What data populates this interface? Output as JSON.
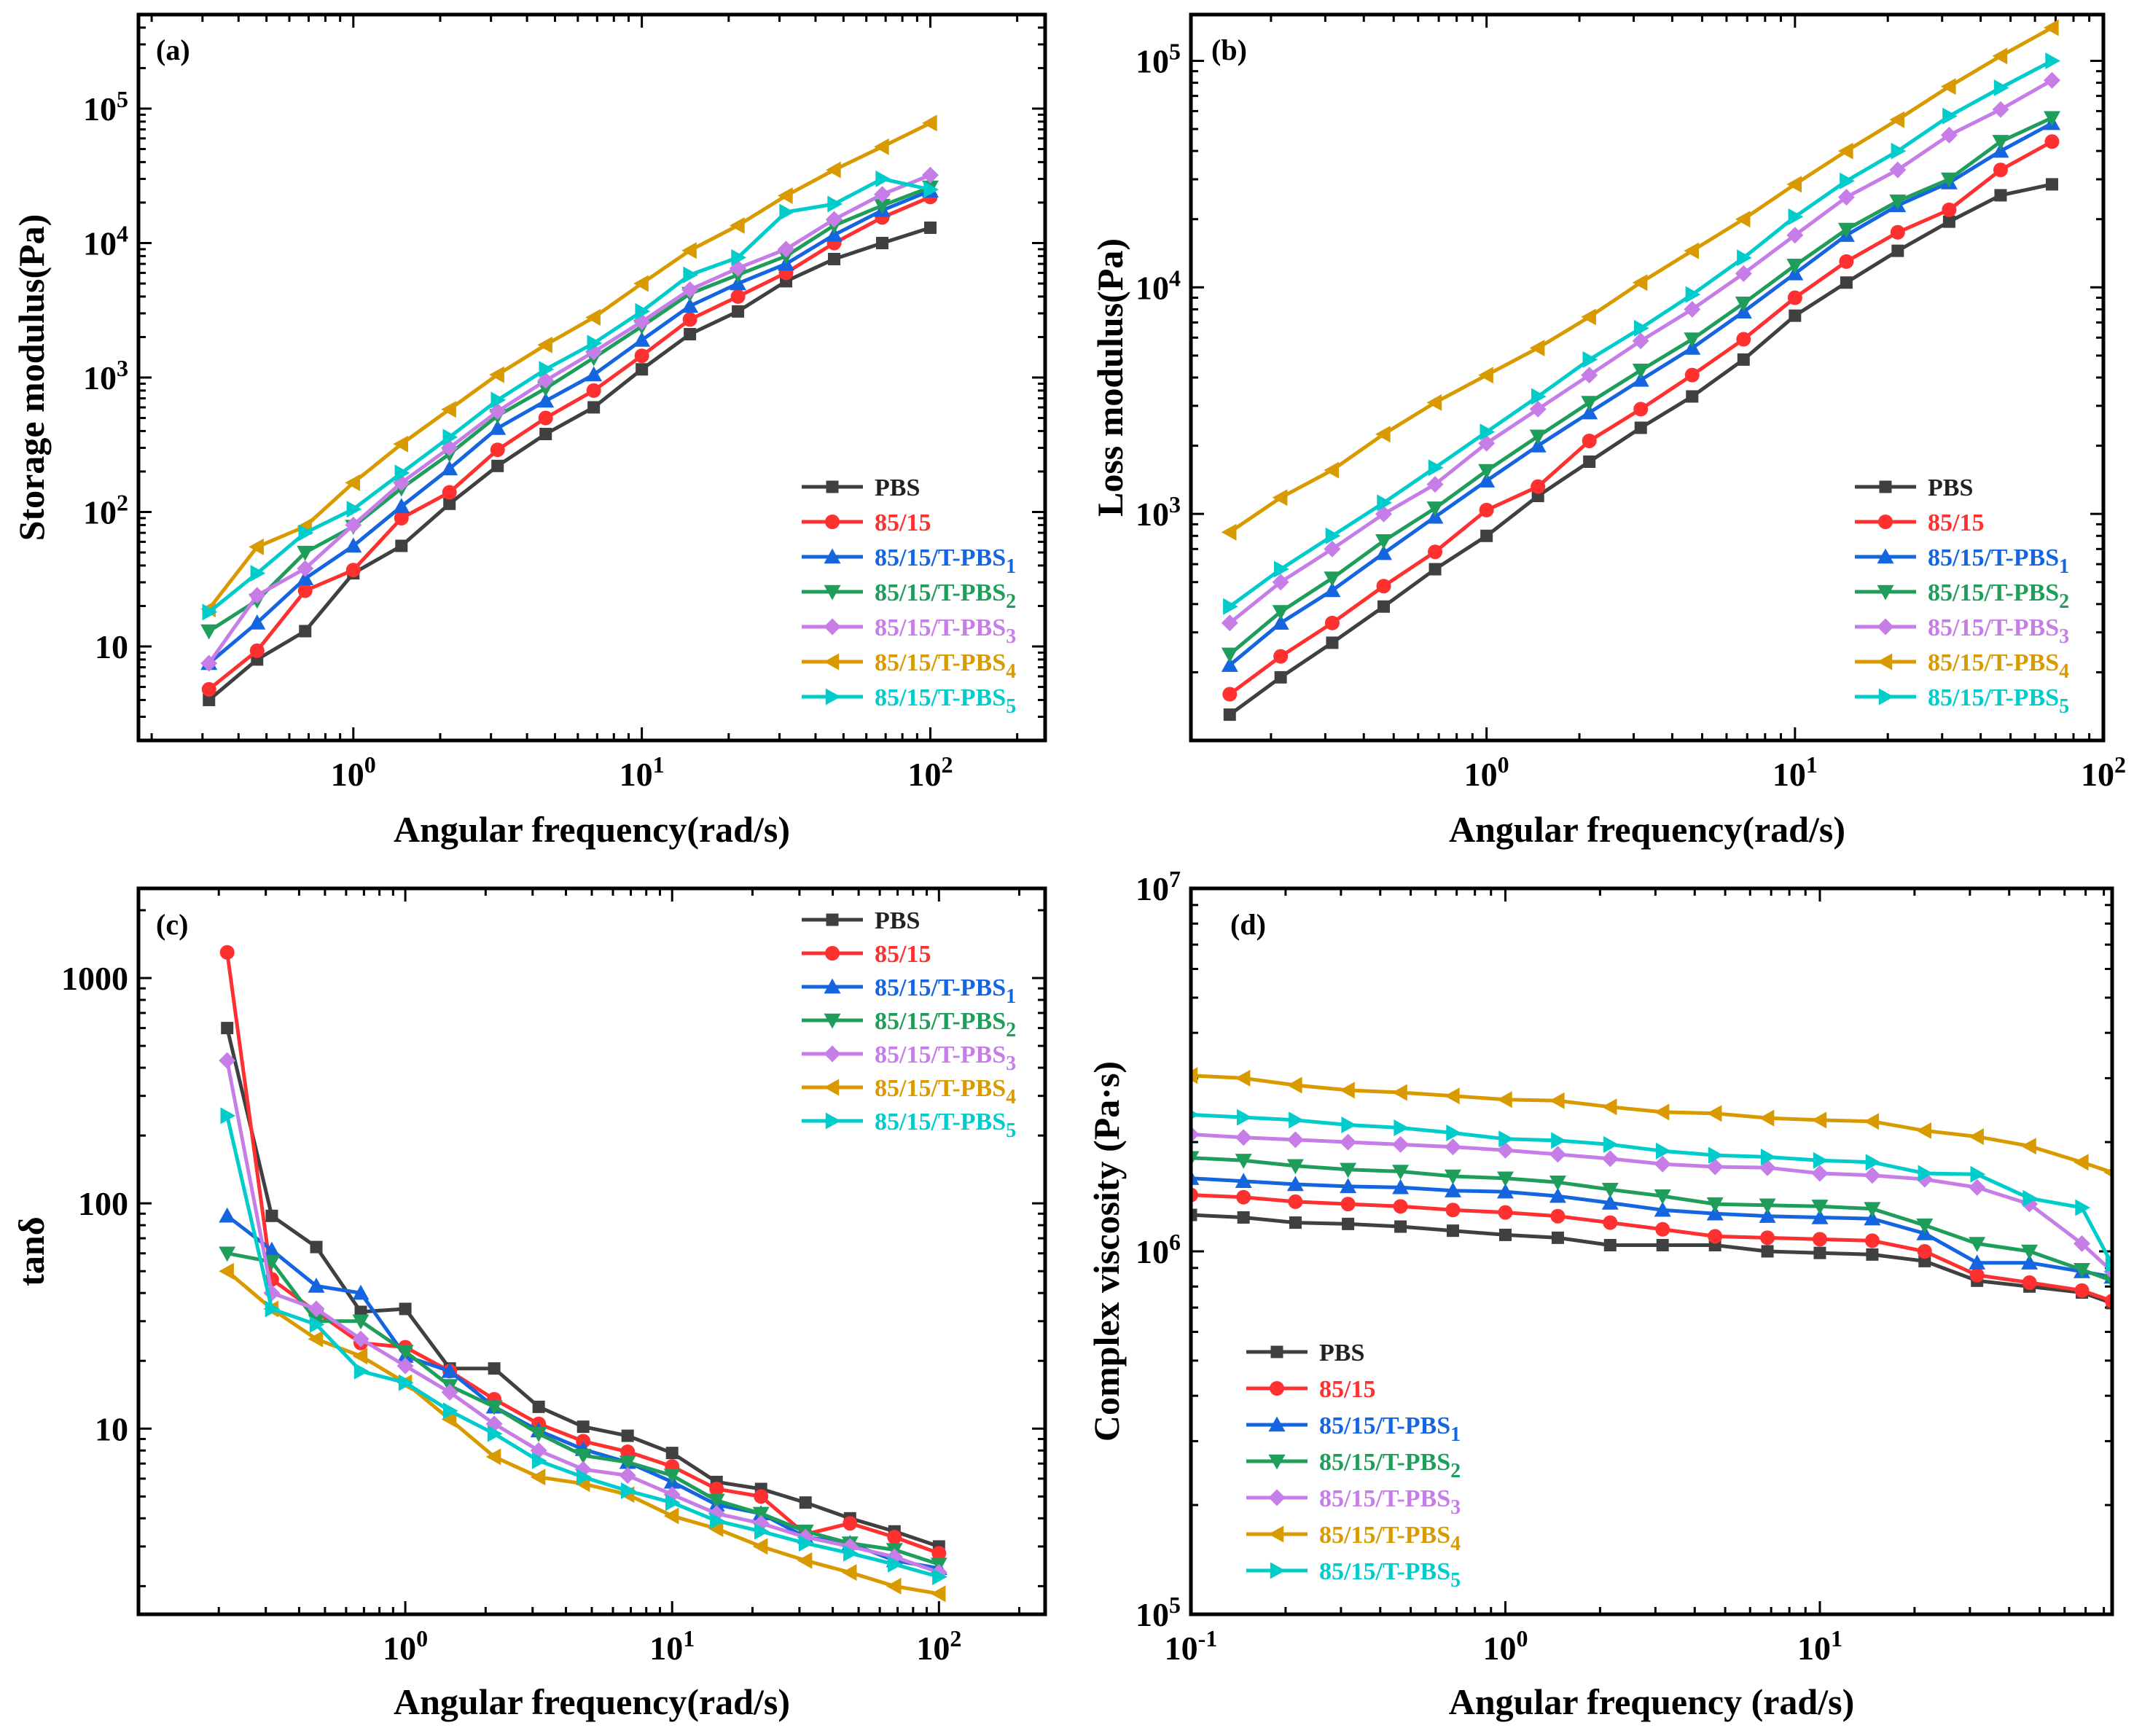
{
  "chart_data": [
    {
      "type": "line",
      "panel_label": "(a)",
      "title": "",
      "xlabel": "Angular frequency(rad/s)",
      "ylabel": "Storage modulus(Pa)",
      "xscale": "log",
      "yscale": "log",
      "xlim": [
        0.18,
        250
      ],
      "ylim": [
        2,
        500000
      ],
      "x_ticks": [
        "10^0",
        "10^1",
        "10^2"
      ],
      "y_ticks": [
        "10",
        "10^2",
        "10^3",
        "10^4",
        "10^5"
      ],
      "legend_position": "lower-right",
      "x": [
        0.316,
        0.464,
        0.681,
        1.0,
        1.468,
        2.154,
        3.162,
        4.642,
        6.813,
        10.0,
        14.68,
        21.54,
        31.62,
        46.42,
        68.13,
        100.0
      ],
      "series": [
        {
          "name": "PBS",
          "color": "#404040",
          "marker": "square",
          "values": [
            4,
            8,
            13,
            35,
            56,
            115,
            220,
            380,
            600,
            1150,
            2100,
            3100,
            5200,
            7600,
            10000,
            13000
          ]
        },
        {
          "name": "85/15",
          "color": "#ff3030",
          "marker": "circle",
          "values": [
            4.8,
            9.3,
            26,
            37,
            90,
            140,
            290,
            500,
            800,
            1450,
            2700,
            4000,
            6000,
            10000,
            15500,
            22000
          ]
        },
        {
          "name": "85/15/T-PBS1",
          "color": "#1565e0",
          "marker": "triangle-up",
          "values": [
            7.5,
            15,
            32,
            56,
            110,
            210,
            420,
            670,
            1050,
            1900,
            3400,
            5000,
            7000,
            11500,
            17500,
            24500
          ]
        },
        {
          "name": "85/15/T-PBS2",
          "color": "#1e9e5a",
          "marker": "triangle-down",
          "values": [
            13,
            22,
            50,
            78,
            150,
            270,
            520,
            830,
            1400,
            2400,
            4200,
            5800,
            8000,
            13500,
            19000,
            26000
          ]
        },
        {
          "name": "85/15/T-PBS3",
          "color": "#c77de8",
          "marker": "diamond",
          "values": [
            7.5,
            24,
            38,
            80,
            165,
            300,
            560,
            950,
            1550,
            2600,
            4500,
            6500,
            9000,
            15000,
            23000,
            32000
          ]
        },
        {
          "name": "85/15/T-PBS4",
          "color": "#d99a00",
          "marker": "triangle-left",
          "values": [
            19,
            55,
            78,
            165,
            320,
            580,
            1050,
            1750,
            2800,
            5000,
            8800,
            13500,
            22500,
            35000,
            52000,
            78000
          ]
        },
        {
          "name": "85/15/T-PBS5",
          "color": "#00cccc",
          "marker": "triangle-right",
          "values": [
            18,
            35,
            70,
            105,
            195,
            360,
            680,
            1150,
            1800,
            3100,
            5800,
            7800,
            17000,
            19500,
            30000,
            25000
          ]
        }
      ]
    },
    {
      "type": "line",
      "panel_label": "(b)",
      "title": "",
      "xlabel": "Angular frequency(rad/s)",
      "ylabel": "Loss modulus(Pa)",
      "xscale": "log",
      "yscale": "log",
      "xlim": [
        0.11,
        100
      ],
      "ylim": [
        100,
        160000
      ],
      "x_ticks": [
        "10^0",
        "10^1",
        "10^2"
      ],
      "y_ticks": [
        "10^3",
        "10^4",
        "10^5"
      ],
      "legend_position": "lower-right",
      "x": [
        0.147,
        0.215,
        0.316,
        0.464,
        0.681,
        1.0,
        1.468,
        2.154,
        3.162,
        4.642,
        6.813,
        10.0,
        14.68,
        21.54,
        31.62,
        46.42,
        68.13
      ],
      "series": [
        {
          "name": "PBS",
          "color": "#404040",
          "marker": "square",
          "values": [
            130,
            190,
            270,
            390,
            570,
            800,
            1200,
            1700,
            2400,
            3300,
            4800,
            7500,
            10500,
            14500,
            19500,
            25500,
            28500
          ]
        },
        {
          "name": "85/15",
          "color": "#ff3030",
          "marker": "circle",
          "values": [
            160,
            235,
            330,
            480,
            680,
            1040,
            1320,
            2100,
            2900,
            4100,
            5900,
            9000,
            13000,
            17500,
            22000,
            33000,
            44000
          ]
        },
        {
          "name": "85/15/T-PBS1",
          "color": "#1565e0",
          "marker": "triangle-up",
          "values": [
            215,
            330,
            460,
            670,
            970,
            1400,
            2000,
            2800,
            3900,
            5400,
            7800,
            11500,
            17000,
            23000,
            29000,
            40000,
            53000
          ]
        },
        {
          "name": "85/15/T-PBS2",
          "color": "#1e9e5a",
          "marker": "triangle-down",
          "values": [
            240,
            370,
            520,
            760,
            1060,
            1550,
            2200,
            3100,
            4300,
            5900,
            8500,
            12500,
            18000,
            24000,
            30000,
            44000,
            56000
          ]
        },
        {
          "name": "85/15/T-PBS3",
          "color": "#c77de8",
          "marker": "diamond",
          "values": [
            330,
            500,
            700,
            1000,
            1350,
            2050,
            2900,
            4100,
            5800,
            8000,
            11500,
            17000,
            25000,
            33000,
            47000,
            61000,
            82000
          ]
        },
        {
          "name": "85/15/T-PBS4",
          "color": "#d99a00",
          "marker": "triangle-left",
          "values": [
            830,
            1180,
            1560,
            2250,
            3100,
            4100,
            5400,
            7400,
            10500,
            14500,
            20000,
            28500,
            40000,
            55000,
            77000,
            105000,
            140000
          ]
        },
        {
          "name": "85/15/T-PBS5",
          "color": "#00cccc",
          "marker": "triangle-right",
          "values": [
            390,
            570,
            800,
            1120,
            1600,
            2300,
            3300,
            4800,
            6600,
            9300,
            13500,
            20500,
            29500,
            40000,
            57000,
            76000,
            100000
          ]
        }
      ]
    },
    {
      "type": "line",
      "panel_label": "(c)",
      "title": "",
      "xlabel": "Angular frequency(rad/s)",
      "ylabel": "tanδ",
      "xscale": "log",
      "yscale": "log",
      "xlim": [
        0.1,
        250
      ],
      "ylim": [
        1.5,
        2500
      ],
      "x_ticks": [
        "10^0",
        "10^1",
        "10^2"
      ],
      "y_ticks": [
        "10",
        "100",
        "1000"
      ],
      "legend_position": "top-right",
      "x": [
        0.215,
        0.316,
        0.464,
        0.681,
        1.0,
        1.468,
        2.154,
        3.162,
        4.642,
        6.813,
        10.0,
        14.68,
        21.54,
        31.62,
        46.42,
        68.13,
        100.0
      ],
      "series": [
        {
          "name": "PBS",
          "color": "#404040",
          "marker": "square",
          "values": [
            600,
            88,
            64,
            33,
            34,
            18.5,
            18.5,
            12.5,
            10.2,
            9.3,
            7.8,
            5.8,
            5.4,
            4.7,
            4.0,
            3.5,
            3.0
          ]
        },
        {
          "name": "85/15",
          "color": "#ff3030",
          "marker": "circle",
          "values": [
            1300,
            46,
            33,
            24,
            23,
            18,
            13.5,
            10.5,
            8.8,
            7.9,
            6.8,
            5.4,
            5.0,
            3.4,
            3.8,
            3.3,
            2.8
          ]
        },
        {
          "name": "85/15/T-PBS1",
          "color": "#1565e0",
          "marker": "triangle-up",
          "values": [
            88,
            62,
            43,
            40,
            21,
            18,
            12.5,
            9.8,
            8.1,
            7.1,
            5.8,
            4.6,
            4.2,
            3.3,
            3.1,
            2.6,
            2.4
          ]
        },
        {
          "name": "85/15/T-PBS2",
          "color": "#1e9e5a",
          "marker": "triangle-down",
          "values": [
            60,
            55,
            30,
            30,
            22,
            15.5,
            12.5,
            9.5,
            7.6,
            7.1,
            6.2,
            4.8,
            4.2,
            3.5,
            3.1,
            2.9,
            2.5
          ]
        },
        {
          "name": "85/15/T-PBS3",
          "color": "#c77de8",
          "marker": "diamond",
          "values": [
            430,
            40,
            34,
            25,
            19,
            14.5,
            10.5,
            8.0,
            6.6,
            6.2,
            5.1,
            4.2,
            3.8,
            3.3,
            3.0,
            2.7,
            2.3
          ]
        },
        {
          "name": "85/15/T-PBS4",
          "color": "#d99a00",
          "marker": "triangle-left",
          "values": [
            50,
            34,
            25,
            21,
            16,
            11,
            7.5,
            6.1,
            5.7,
            5.1,
            4.1,
            3.6,
            3.0,
            2.6,
            2.3,
            2.0,
            1.85
          ]
        },
        {
          "name": "85/15/T-PBS5",
          "color": "#00cccc",
          "marker": "triangle-right",
          "values": [
            245,
            34,
            29,
            18,
            16,
            12,
            9.5,
            7.2,
            6.1,
            5.3,
            4.7,
            3.9,
            3.5,
            3.1,
            2.8,
            2.5,
            2.2
          ]
        }
      ]
    },
    {
      "type": "line",
      "panel_label": "(d)",
      "title": "",
      "xlabel": "Angular frequency (rad/s)",
      "ylabel": "Complex viscosity (Pa·s)",
      "xscale": "log",
      "yscale": "log",
      "xlim": [
        0.1,
        85
      ],
      "ylim": [
        100000,
        10000000
      ],
      "x_ticks": [
        "10^-1",
        "10^0",
        "10^1"
      ],
      "y_ticks": [
        "10^5",
        "10^6",
        "10^7"
      ],
      "legend_position": "lower-left",
      "x": [
        0.1,
        0.147,
        0.215,
        0.316,
        0.464,
        0.681,
        1.0,
        1.468,
        2.154,
        3.162,
        4.642,
        6.813,
        10.0,
        14.68,
        21.54,
        31.62,
        46.42,
        68.13,
        85.0
      ],
      "series": [
        {
          "name": "PBS",
          "color": "#404040",
          "marker": "square",
          "values": [
            1260000,
            1240000,
            1200000,
            1190000,
            1170000,
            1140000,
            1110000,
            1090000,
            1040000,
            1040000,
            1040000,
            1000000,
            990000,
            980000,
            940000,
            830000,
            800000,
            770000,
            720000
          ]
        },
        {
          "name": "85/15",
          "color": "#ff3030",
          "marker": "circle",
          "values": [
            1430000,
            1410000,
            1370000,
            1350000,
            1330000,
            1300000,
            1280000,
            1250000,
            1200000,
            1150000,
            1100000,
            1090000,
            1080000,
            1070000,
            1000000,
            860000,
            820000,
            780000,
            730000
          ]
        },
        {
          "name": "85/15/T-PBS1",
          "color": "#1565e0",
          "marker": "triangle-up",
          "values": [
            1590000,
            1560000,
            1530000,
            1510000,
            1500000,
            1470000,
            1460000,
            1420000,
            1360000,
            1300000,
            1270000,
            1250000,
            1240000,
            1230000,
            1120000,
            930000,
            930000,
            880000,
            850000
          ]
        },
        {
          "name": "85/15/T-PBS2",
          "color": "#1e9e5a",
          "marker": "triangle-down",
          "values": [
            1810000,
            1780000,
            1720000,
            1680000,
            1660000,
            1610000,
            1590000,
            1550000,
            1480000,
            1420000,
            1350000,
            1340000,
            1330000,
            1310000,
            1180000,
            1050000,
            1000000,
            890000,
            830000
          ]
        },
        {
          "name": "85/15/T-PBS3",
          "color": "#c77de8",
          "marker": "diamond",
          "values": [
            2100000,
            2060000,
            2030000,
            2000000,
            1970000,
            1940000,
            1900000,
            1850000,
            1800000,
            1740000,
            1710000,
            1700000,
            1640000,
            1620000,
            1580000,
            1500000,
            1350000,
            1050000,
            880000
          ]
        },
        {
          "name": "85/15/T-PBS4",
          "color": "#d99a00",
          "marker": "triangle-left",
          "values": [
            3050000,
            3000000,
            2870000,
            2780000,
            2740000,
            2680000,
            2620000,
            2600000,
            2500000,
            2420000,
            2400000,
            2330000,
            2300000,
            2280000,
            2150000,
            2070000,
            1950000,
            1760000,
            1650000
          ]
        },
        {
          "name": "85/15/T-PBS5",
          "color": "#00cccc",
          "marker": "triangle-right",
          "values": [
            2380000,
            2340000,
            2300000,
            2230000,
            2190000,
            2120000,
            2040000,
            2020000,
            1970000,
            1890000,
            1840000,
            1820000,
            1780000,
            1760000,
            1640000,
            1630000,
            1400000,
            1320000,
            920000
          ]
        }
      ]
    }
  ]
}
